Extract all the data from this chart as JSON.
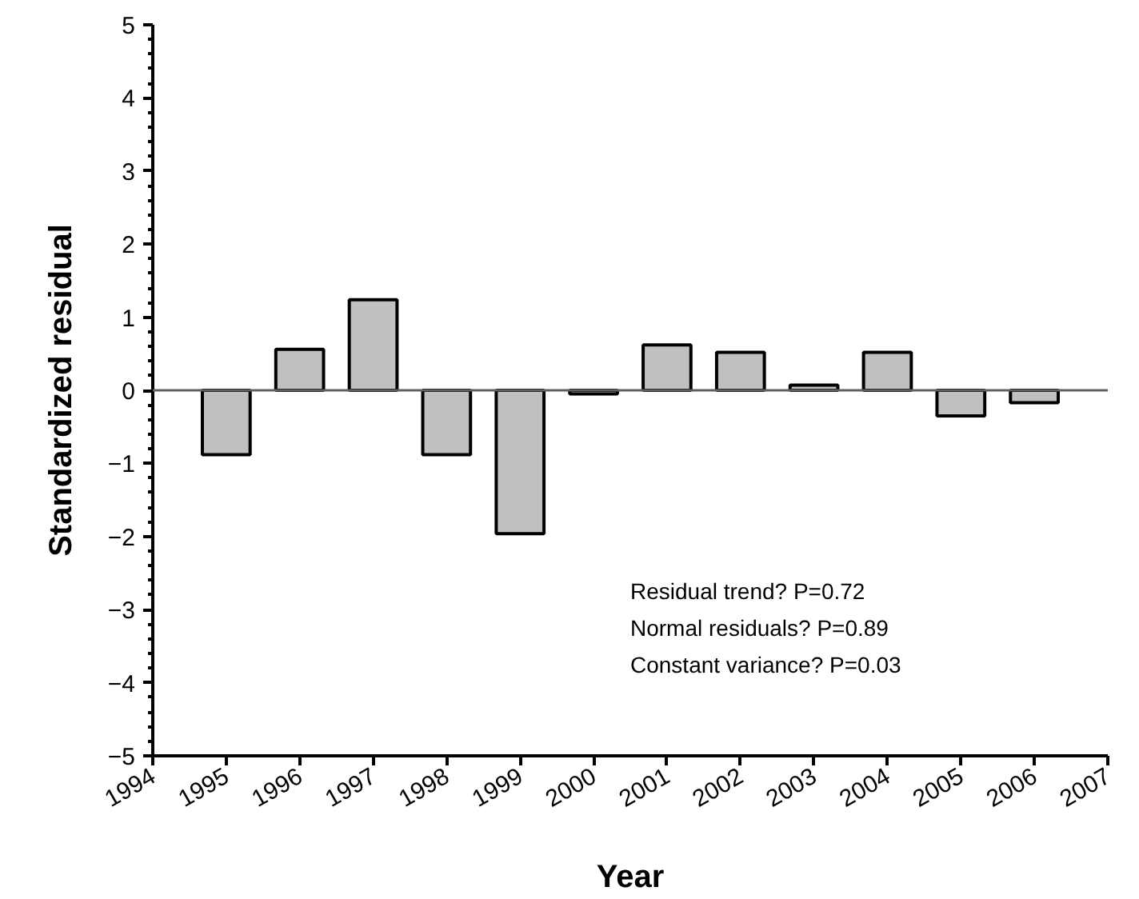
{
  "chart_data": {
    "type": "bar",
    "xlabel": "Year",
    "ylabel": "Standardized residual",
    "x": [
      1995,
      1996,
      1997,
      1998,
      1999,
      2000,
      2001,
      2002,
      2003,
      2004,
      2005,
      2006
    ],
    "values": [
      -0.88,
      0.56,
      1.24,
      -0.88,
      -1.96,
      -0.05,
      0.62,
      0.52,
      0.07,
      0.52,
      -0.35,
      -0.17
    ],
    "color": "#c0c0c0",
    "xlim": [
      1994,
      2007
    ],
    "xticks": [
      1994,
      1995,
      1996,
      1997,
      1998,
      1999,
      2000,
      2001,
      2002,
      2003,
      2004,
      2005,
      2006,
      2007
    ],
    "ylim": [
      -5,
      5
    ],
    "yticks": [
      -5,
      -4,
      -3,
      -2,
      -1,
      0,
      1,
      2,
      3,
      4,
      5
    ],
    "ref_lines": [
      {
        "axis": "y",
        "value": 0,
        "color": "#606060"
      }
    ],
    "annotations": [
      "Residual trend? P=0.72",
      "Normal residuals? P=0.89",
      "Constant variance? P=0.03"
    ]
  }
}
